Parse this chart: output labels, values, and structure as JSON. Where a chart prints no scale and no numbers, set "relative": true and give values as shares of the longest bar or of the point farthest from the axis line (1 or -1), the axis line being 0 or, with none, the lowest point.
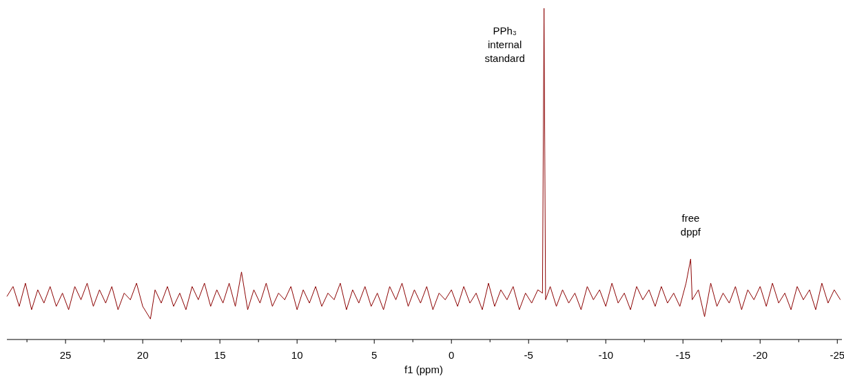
{
  "chart_data": {
    "type": "line",
    "relative": true,
    "xlabel": "f1 (ppm)",
    "xlim": [
      28.8,
      -25.3
    ],
    "xticks": [
      {
        "value": 27.5,
        "label": null
      },
      25,
      {
        "value": 22.5,
        "label": null
      },
      20,
      {
        "value": 17.5,
        "label": null
      },
      15,
      {
        "value": 12.5,
        "label": null
      },
      10,
      {
        "value": 7.5,
        "label": null
      },
      5,
      {
        "value": 2.5,
        "label": null
      },
      0,
      {
        "value": -2.5,
        "label": null
      },
      -5,
      {
        "value": -7.5,
        "label": null
      },
      -10,
      {
        "value": -12.5,
        "label": null
      },
      -15,
      {
        "value": -17.5,
        "label": null
      },
      -20,
      {
        "value": -22.5,
        "label": null
      },
      -25
    ],
    "grid": false,
    "marker": "none",
    "line_style": "solid",
    "annotations": [
      {
        "text": "PPh₃\ninternal\nstandard",
        "x": -6.0,
        "y": 1
      },
      {
        "text": "free\ndppf",
        "x": -15.5,
        "y": 0.243
      }
    ],
    "series": [
      {
        "color": "#8b0000",
        "x": [
          28.8,
          28.4,
          28.0,
          27.6,
          27.2,
          26.8,
          26.4,
          26.0,
          25.6,
          25.2,
          24.8,
          24.4,
          24.0,
          23.6,
          23.2,
          22.8,
          22.4,
          22.0,
          21.6,
          21.2,
          20.8,
          20.4,
          20.0,
          19.5,
          19.2,
          18.8,
          18.4,
          18.0,
          17.6,
          17.2,
          16.8,
          16.4,
          16.0,
          15.6,
          15.2,
          14.8,
          14.4,
          14.0,
          13.6,
          13.2,
          12.8,
          12.4,
          12.0,
          11.6,
          11.2,
          10.8,
          10.4,
          10.0,
          9.6,
          9.2,
          8.8,
          8.4,
          8.0,
          7.6,
          7.2,
          6.8,
          6.4,
          6.0,
          5.6,
          5.2,
          4.8,
          4.4,
          4.0,
          3.6,
          3.2,
          2.8,
          2.4,
          2.0,
          1.6,
          1.2,
          0.8,
          0.4,
          0.0,
          -0.4,
          -0.8,
          -1.2,
          -1.6,
          -2.0,
          -2.4,
          -2.8,
          -3.2,
          -3.6,
          -4.0,
          -4.4,
          -4.8,
          -5.2,
          -5.6,
          -5.9,
          -6.0,
          -6.1,
          -6.4,
          -6.8,
          -7.2,
          -7.6,
          -8.0,
          -8.4,
          -8.8,
          -9.2,
          -9.6,
          -10.0,
          -10.4,
          -10.8,
          -11.2,
          -11.6,
          -12.0,
          -12.4,
          -12.8,
          -13.2,
          -13.6,
          -14.0,
          -14.4,
          -14.8,
          -15.2,
          -15.5,
          -15.6,
          -16.0,
          -16.4,
          -16.8,
          -17.2,
          -17.6,
          -18.0,
          -18.4,
          -18.8,
          -19.2,
          -19.6,
          -20.0,
          -20.4,
          -20.8,
          -21.2,
          -21.6,
          -22.0,
          -22.4,
          -22.8,
          -23.2,
          -23.6,
          -24.0,
          -24.4,
          -24.8,
          -25.2
        ],
        "values": [
          0.13,
          0.16,
          0.1,
          0.17,
          0.09,
          0.15,
          0.11,
          0.16,
          0.1,
          0.14,
          0.09,
          0.16,
          0.12,
          0.17,
          0.1,
          0.15,
          0.11,
          0.16,
          0.09,
          0.14,
          0.12,
          0.17,
          0.1,
          0.062,
          0.15,
          0.11,
          0.16,
          0.1,
          0.14,
          0.09,
          0.16,
          0.12,
          0.17,
          0.1,
          0.15,
          0.11,
          0.17,
          0.1,
          0.204,
          0.09,
          0.15,
          0.11,
          0.17,
          0.1,
          0.14,
          0.12,
          0.16,
          0.09,
          0.15,
          0.11,
          0.16,
          0.1,
          0.14,
          0.12,
          0.17,
          0.09,
          0.15,
          0.11,
          0.16,
          0.1,
          0.14,
          0.09,
          0.16,
          0.12,
          0.17,
          0.1,
          0.15,
          0.11,
          0.16,
          0.09,
          0.14,
          0.12,
          0.15,
          0.1,
          0.16,
          0.11,
          0.14,
          0.09,
          0.17,
          0.1,
          0.15,
          0.12,
          0.16,
          0.09,
          0.14,
          0.11,
          0.15,
          0.14,
          1,
          0.12,
          0.16,
          0.1,
          0.15,
          0.11,
          0.14,
          0.09,
          0.16,
          0.12,
          0.15,
          0.1,
          0.17,
          0.11,
          0.14,
          0.09,
          0.16,
          0.12,
          0.15,
          0.1,
          0.16,
          0.11,
          0.14,
          0.1,
          0.17,
          0.243,
          0.12,
          0.15,
          0.069,
          0.17,
          0.1,
          0.14,
          0.11,
          0.16,
          0.09,
          0.15,
          0.12,
          0.16,
          0.1,
          0.17,
          0.11,
          0.14,
          0.09,
          0.16,
          0.12,
          0.15,
          0.09,
          0.17,
          0.11,
          0.15,
          0.12
        ]
      }
    ]
  }
}
